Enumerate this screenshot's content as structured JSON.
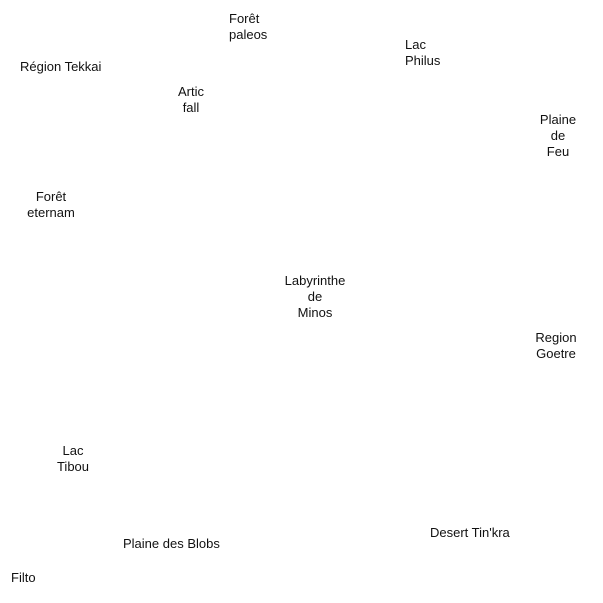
{
  "places": {
    "foret_paleos": [
      "Forêt",
      "paleos"
    ],
    "lac_philus": [
      "Lac",
      "Philus"
    ],
    "region_tekkai": [
      "Région Tekkai"
    ],
    "artic_fall": [
      "Artic",
      "fall"
    ],
    "plaine_de_feu": [
      "Plaine",
      "de",
      "Feu"
    ],
    "foret_eternam": [
      "Forêt",
      "eternam"
    ],
    "labyrinthe_de_minos": [
      "Labyrinthe",
      "de",
      "Minos"
    ],
    "region_goetre": [
      "Region",
      "Goetre"
    ],
    "lac_tibou": [
      "Lac",
      "Tibou"
    ],
    "desert_tinkra": [
      "Desert Tin'kra"
    ],
    "plaine_des_blobs": [
      "Plaine des Blobs"
    ],
    "filto": [
      "Filto"
    ]
  }
}
